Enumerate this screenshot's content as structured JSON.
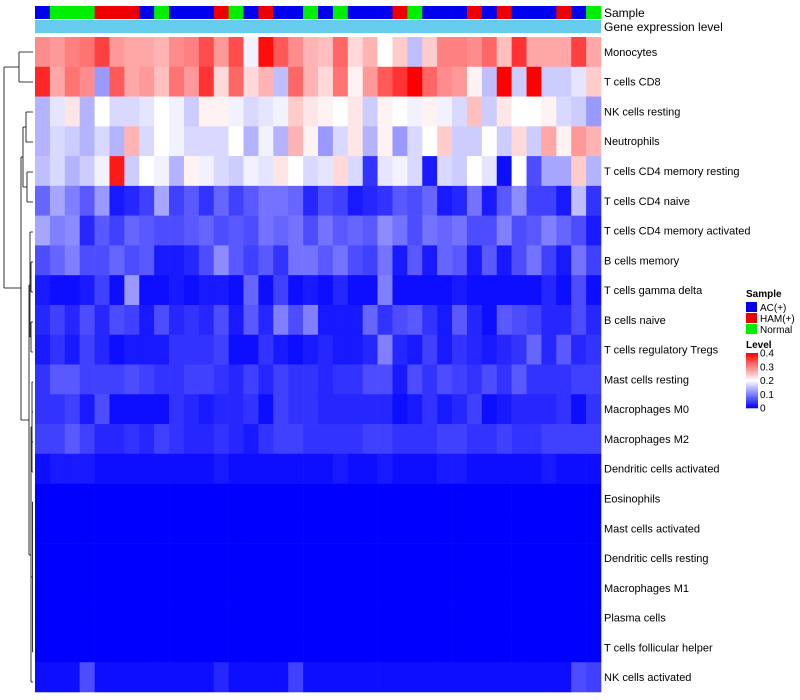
{
  "chart_data": {
    "type": "heatmap",
    "title": "",
    "annotation_tracks": [
      {
        "name": "Sample",
        "values": [
          "AC(+)",
          "Normal",
          "Normal",
          "Normal",
          "HAM(+)",
          "HAM(+)",
          "HAM(+)",
          "AC(+)",
          "Normal",
          "AC(+)",
          "AC(+)",
          "AC(+)",
          "HAM(+)",
          "Normal",
          "AC(+)",
          "HAM(+)",
          "AC(+)",
          "AC(+)",
          "Normal",
          "AC(+)",
          "Normal",
          "AC(+)",
          "AC(+)",
          "AC(+)",
          "HAM(+)",
          "Normal",
          "AC(+)",
          "AC(+)",
          "AC(+)",
          "HAM(+)",
          "AC(+)",
          "HAM(+)",
          "AC(+)",
          "AC(+)",
          "AC(+)",
          "HAM(+)",
          "AC(+)",
          "Normal"
        ]
      },
      {
        "name": "Gene expression level",
        "color": "#66ccee"
      }
    ],
    "rows": [
      "Monocytes",
      "T cells CD8",
      "NK cells resting",
      "Neutrophils",
      "T cells CD4 memory resting",
      "T cells CD4 naive",
      "T cells CD4 memory activated",
      "B cells memory",
      "T cells gamma delta",
      "B cells naive",
      "T cells regulatory  Tregs",
      "Mast cells resting",
      "Macrophages M0",
      "Macrophages M2",
      "Dendritic cells activated",
      "Eosinophils",
      "Mast cells activated",
      "Dendritic cells resting",
      "Macrophages M1",
      "Plasma cells",
      "T cells follicular helper",
      "NK cells activated"
    ],
    "n_columns": 38,
    "matrix": [
      [
        0.29,
        0.28,
        0.3,
        0.31,
        0.35,
        0.28,
        0.27,
        0.27,
        0.26,
        0.29,
        0.3,
        0.34,
        0.28,
        0.34,
        0.19,
        0.39,
        0.33,
        0.29,
        0.26,
        0.25,
        0.32,
        0.23,
        0.26,
        0.2,
        0.24,
        0.15,
        0.24,
        0.3,
        0.3,
        0.29,
        0.32,
        0.25,
        0.36,
        0.27,
        0.27,
        0.27,
        0.35,
        0.27
      ],
      [
        0.37,
        0.27,
        0.31,
        0.29,
        0.12,
        0.33,
        0.27,
        0.28,
        0.25,
        0.31,
        0.28,
        0.36,
        0.23,
        0.32,
        0.23,
        0.26,
        0.15,
        0.32,
        0.26,
        0.23,
        0.31,
        0.21,
        0.28,
        0.33,
        0.36,
        0.4,
        0.32,
        0.29,
        0.28,
        0.21,
        0.15,
        0.4,
        0.16,
        0.4,
        0.16,
        0.16,
        0.18,
        0.24
      ],
      [
        0.14,
        0.18,
        0.22,
        0.14,
        0.2,
        0.17,
        0.17,
        0.18,
        0.2,
        0.19,
        0.16,
        0.21,
        0.21,
        0.19,
        0.17,
        0.18,
        0.19,
        0.24,
        0.22,
        0.21,
        0.2,
        0.22,
        0.16,
        0.21,
        0.2,
        0.19,
        0.21,
        0.19,
        0.17,
        0.25,
        0.16,
        0.22,
        0.2,
        0.2,
        0.21,
        0.17,
        0.16,
        0.12
      ],
      [
        0.14,
        0.17,
        0.16,
        0.14,
        0.17,
        0.14,
        0.26,
        0.17,
        0.2,
        0.19,
        0.17,
        0.17,
        0.17,
        0.2,
        0.14,
        0.19,
        0.14,
        0.26,
        0.21,
        0.12,
        0.17,
        0.22,
        0.14,
        0.21,
        0.12,
        0.17,
        0.2,
        0.24,
        0.16,
        0.16,
        0.2,
        0.16,
        0.23,
        0.16,
        0.27,
        0.21,
        0.28,
        0.26
      ],
      [
        0.15,
        0.17,
        0.14,
        0.16,
        0.19,
        0.38,
        0.16,
        0.2,
        0.19,
        0.14,
        0.21,
        0.19,
        0.17,
        0.16,
        0.19,
        0.18,
        0.22,
        0.2,
        0.17,
        0.18,
        0.23,
        0.17,
        0.04,
        0.18,
        0.19,
        0.17,
        0.02,
        0.17,
        0.16,
        0.2,
        0.18,
        0.01,
        0.2,
        0.06,
        0.13,
        0.13,
        0.24,
        0.14
      ],
      [
        0.08,
        0.13,
        0.1,
        0.07,
        0.12,
        0.02,
        0.03,
        0.05,
        0.13,
        0.05,
        0.07,
        0.04,
        0.08,
        0.05,
        0.07,
        0.09,
        0.09,
        0.08,
        0.03,
        0.06,
        0.05,
        0.02,
        0.03,
        0.04,
        0.07,
        0.06,
        0.08,
        0.02,
        0.03,
        0.09,
        0.02,
        0.07,
        0.11,
        0.05,
        0.05,
        0.02,
        0.15,
        0.04
      ],
      [
        0.13,
        0.1,
        0.11,
        0.03,
        0.07,
        0.05,
        0.08,
        0.07,
        0.06,
        0.06,
        0.07,
        0.08,
        0.06,
        0.07,
        0.06,
        0.09,
        0.08,
        0.09,
        0.06,
        0.09,
        0.07,
        0.08,
        0.07,
        0.11,
        0.09,
        0.06,
        0.09,
        0.08,
        0.09,
        0.06,
        0.06,
        0.1,
        0.06,
        0.07,
        0.1,
        0.08,
        0.06,
        0.02
      ],
      [
        0.06,
        0.08,
        0.1,
        0.06,
        0.06,
        0.08,
        0.06,
        0.07,
        0.02,
        0.02,
        0.03,
        0.06,
        0.11,
        0.07,
        0.05,
        0.07,
        0.04,
        0.09,
        0.09,
        0.07,
        0.09,
        0.06,
        0.05,
        0.09,
        0.02,
        0.07,
        0.02,
        0.08,
        0.07,
        0.02,
        0.07,
        0.02,
        0.06,
        0.09,
        0.05,
        0.02,
        0.09,
        0.05
      ],
      [
        0.02,
        0.01,
        0.01,
        0.02,
        0.05,
        0.01,
        0.12,
        0.01,
        0.01,
        0.02,
        0.01,
        0.02,
        0.02,
        0.01,
        0.08,
        0.01,
        0.05,
        0.01,
        0.02,
        0.01,
        0.03,
        0.01,
        0.01,
        0.1,
        0.01,
        0.01,
        0.01,
        0.01,
        0.02,
        0.01,
        0.01,
        0.01,
        0.01,
        0.01,
        0.03,
        0.01,
        0.06,
        0.01
      ],
      [
        0.03,
        0.05,
        0.03,
        0.06,
        0.03,
        0.06,
        0.05,
        0.02,
        0.06,
        0.03,
        0.04,
        0.03,
        0.06,
        0.02,
        0.07,
        0.03,
        0.1,
        0.06,
        0.1,
        0.02,
        0.02,
        0.02,
        0.08,
        0.04,
        0.06,
        0.07,
        0.04,
        0.02,
        0.07,
        0.03,
        0.01,
        0.07,
        0.06,
        0.05,
        0.03,
        0.03,
        0.06,
        0.03
      ],
      [
        0.02,
        0.04,
        0.02,
        0.05,
        0.03,
        0.01,
        0.02,
        0.02,
        0.02,
        0.04,
        0.04,
        0.04,
        0.05,
        0.01,
        0.01,
        0.04,
        0.02,
        0.01,
        0.02,
        0.03,
        0.02,
        0.02,
        0.03,
        0.1,
        0.03,
        0.02,
        0.05,
        0.02,
        0.04,
        0.03,
        0.02,
        0.03,
        0.04,
        0.08,
        0.03,
        0.07,
        0.03,
        0.04
      ],
      [
        0.04,
        0.07,
        0.07,
        0.05,
        0.05,
        0.05,
        0.06,
        0.05,
        0.04,
        0.04,
        0.05,
        0.05,
        0.04,
        0.03,
        0.05,
        0.03,
        0.05,
        0.04,
        0.04,
        0.03,
        0.04,
        0.04,
        0.06,
        0.06,
        0.02,
        0.06,
        0.04,
        0.06,
        0.05,
        0.04,
        0.06,
        0.04,
        0.07,
        0.04,
        0.04,
        0.04,
        0.05,
        0.05
      ],
      [
        0.04,
        0.04,
        0.05,
        0.02,
        0.06,
        0.01,
        0.01,
        0.01,
        0.01,
        0.04,
        0.03,
        0.02,
        0.03,
        0.03,
        0.04,
        0.01,
        0.05,
        0.04,
        0.04,
        0.03,
        0.03,
        0.03,
        0.03,
        0.03,
        0.01,
        0.02,
        0.04,
        0.02,
        0.03,
        0.05,
        0.01,
        0.02,
        0.03,
        0.03,
        0.03,
        0.04,
        0.01,
        0.04
      ],
      [
        0.05,
        0.05,
        0.07,
        0.05,
        0.03,
        0.03,
        0.04,
        0.03,
        0.05,
        0.04,
        0.03,
        0.03,
        0.04,
        0.03,
        0.02,
        0.04,
        0.05,
        0.05,
        0.04,
        0.04,
        0.04,
        0.04,
        0.05,
        0.05,
        0.04,
        0.04,
        0.04,
        0.05,
        0.05,
        0.04,
        0.04,
        0.05,
        0.04,
        0.04,
        0.05,
        0.05,
        0.05,
        0.05
      ],
      [
        0.01,
        0.02,
        0.02,
        0.02,
        0.01,
        0.01,
        0.01,
        0.01,
        0.01,
        0.01,
        0.01,
        0.01,
        0.02,
        0.01,
        0.01,
        0.01,
        0.01,
        0.01,
        0.01,
        0.01,
        0.02,
        0.01,
        0.01,
        0.02,
        0.01,
        0.01,
        0.01,
        0.02,
        0.02,
        0.01,
        0.01,
        0.01,
        0.01,
        0.01,
        0.02,
        0.01,
        0.01,
        0.01
      ],
      [
        0,
        0,
        0,
        0,
        0,
        0,
        0,
        0,
        0,
        0,
        0,
        0,
        0,
        0,
        0,
        0,
        0,
        0,
        0,
        0,
        0,
        0,
        0,
        0,
        0,
        0,
        0,
        0,
        0,
        0,
        0,
        0,
        0,
        0,
        0,
        0,
        0,
        0
      ],
      [
        0,
        0,
        0,
        0,
        0,
        0,
        0,
        0,
        0,
        0,
        0,
        0,
        0,
        0,
        0,
        0,
        0,
        0,
        0,
        0,
        0,
        0,
        0,
        0,
        0,
        0,
        0,
        0,
        0,
        0,
        0,
        0,
        0,
        0,
        0,
        0,
        0,
        0
      ],
      [
        0,
        0,
        0,
        0,
        0,
        0,
        0,
        0,
        0,
        0,
        0,
        0,
        0,
        0,
        0,
        0,
        0,
        0,
        0,
        0,
        0,
        0,
        0,
        0,
        0,
        0,
        0,
        0,
        0,
        0,
        0,
        0,
        0,
        0,
        0,
        0,
        0,
        0
      ],
      [
        0,
        0,
        0,
        0,
        0,
        0,
        0,
        0,
        0,
        0,
        0,
        0,
        0,
        0,
        0,
        0,
        0,
        0,
        0,
        0,
        0,
        0,
        0,
        0,
        0,
        0,
        0,
        0,
        0,
        0,
        0,
        0,
        0,
        0,
        0,
        0,
        0,
        0
      ],
      [
        0,
        0,
        0,
        0,
        0,
        0,
        0,
        0,
        0,
        0,
        0,
        0,
        0,
        0,
        0,
        0,
        0,
        0,
        0,
        0,
        0,
        0,
        0,
        0,
        0,
        0,
        0,
        0,
        0,
        0,
        0,
        0,
        0,
        0,
        0,
        0,
        0,
        0
      ],
      [
        0,
        0,
        0,
        0,
        0,
        0,
        0,
        0,
        0,
        0,
        0,
        0,
        0,
        0,
        0,
        0,
        0,
        0,
        0,
        0,
        0,
        0,
        0,
        0,
        0,
        0,
        0,
        0,
        0,
        0,
        0,
        0,
        0,
        0,
        0,
        0,
        0,
        0
      ],
      [
        0.01,
        0.01,
        0.01,
        0.06,
        0.01,
        0.01,
        0.01,
        0.01,
        0.01,
        0.01,
        0.01,
        0.01,
        0.03,
        0.01,
        0.01,
        0.01,
        0.01,
        0.05,
        0.01,
        0.01,
        0.01,
        0.01,
        0.01,
        0.01,
        0.01,
        0.01,
        0.01,
        0.01,
        0.01,
        0.01,
        0.01,
        0.01,
        0.01,
        0.01,
        0.01,
        0.01,
        0.06,
        0.05
      ]
    ],
    "legend": {
      "sample_title": "Sample",
      "sample_entries": [
        {
          "label": "AC(+)",
          "color": "#0000ee"
        },
        {
          "label": "HAM(+)",
          "color": "#ee0000"
        },
        {
          "label": "Normal",
          "color": "#00ee00"
        }
      ],
      "level_title": "Level",
      "level_ticks": [
        "0.4",
        "0.3",
        "0.2",
        "0.1",
        "0"
      ],
      "level_range": [
        0,
        0.4
      ],
      "colors": [
        "#0000ff",
        "#ffffff",
        "#ff0000"
      ],
      "placement": "right"
    },
    "row_dendrogram": true,
    "grid": false
  }
}
